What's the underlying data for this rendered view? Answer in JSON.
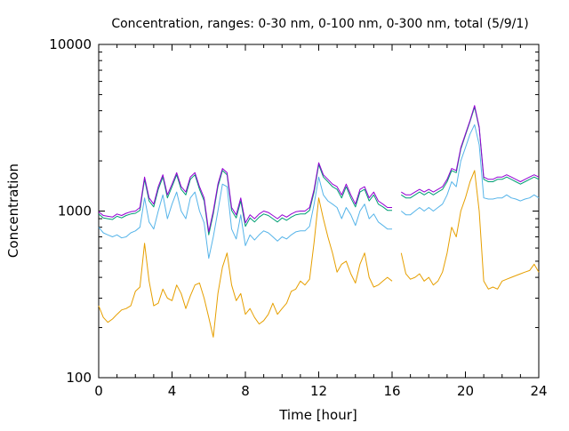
{
  "chart_data": {
    "type": "line",
    "title": "Concentration, ranges: 0-30 nm, 0-100 nm, 0-300 nm, total (5/9/1)",
    "xlabel": "Time [hour]",
    "ylabel": "Concentration",
    "x_scale": "linear",
    "y_scale": "log",
    "xlim": [
      0,
      24
    ],
    "ylim": [
      100,
      10000
    ],
    "x_ticks": [
      0,
      4,
      8,
      12,
      16,
      20,
      24
    ],
    "x_tick_labels": [
      "0",
      "4",
      "8",
      "12",
      "16",
      "20",
      "24"
    ],
    "y_ticks": [
      100,
      1000,
      10000
    ],
    "y_tick_labels": [
      "100",
      "1000",
      "10000"
    ],
    "grid": false,
    "legend": "none",
    "x": [
      0,
      0.25,
      0.5,
      0.75,
      1,
      1.25,
      1.5,
      1.75,
      2,
      2.25,
      2.5,
      2.75,
      3,
      3.25,
      3.5,
      3.75,
      4,
      4.25,
      4.5,
      4.75,
      5,
      5.25,
      5.5,
      5.75,
      6,
      6.25,
      6.5,
      6.75,
      7,
      7.25,
      7.5,
      7.75,
      8,
      8.25,
      8.5,
      8.75,
      9,
      9.25,
      9.5,
      9.75,
      10,
      10.25,
      10.5,
      10.75,
      11,
      11.25,
      11.5,
      11.75,
      12,
      12.25,
      12.5,
      12.75,
      13,
      13.25,
      13.5,
      13.75,
      14,
      14.25,
      14.5,
      14.75,
      15,
      15.25,
      15.5,
      15.75,
      16,
      16.25,
      16.5,
      16.75,
      17,
      17.25,
      17.5,
      17.75,
      18,
      18.25,
      18.5,
      18.75,
      19,
      19.25,
      19.5,
      19.75,
      20,
      20.25,
      20.5,
      20.75,
      21,
      21.25,
      21.5,
      21.75,
      22,
      22.25,
      22.5,
      22.75,
      23,
      23.25,
      23.5,
      23.75,
      24
    ],
    "series": [
      {
        "color": "#9400d3",
        "values": [
          990,
          940,
          930,
          920,
          960,
          940,
          970,
          990,
          1000,
          1050,
          1600,
          1200,
          1100,
          1400,
          1650,
          1250,
          1450,
          1700,
          1400,
          1300,
          1600,
          1700,
          1400,
          1200,
          750,
          1000,
          1450,
          1800,
          1700,
          1050,
          950,
          1200,
          850,
          950,
          900,
          960,
          1000,
          980,
          940,
          900,
          950,
          920,
          960,
          990,
          1000,
          1000,
          1050,
          1350,
          1950,
          1650,
          1550,
          1450,
          1400,
          1250,
          1450,
          1250,
          1100,
          1350,
          1400,
          1200,
          1300,
          1150,
          1100,
          1050,
          1050,
          null,
          1300,
          1250,
          1250,
          1300,
          1350,
          1300,
          1350,
          1300,
          1350,
          1400,
          1550,
          1800,
          1750,
          2400,
          2900,
          3500,
          4300,
          3200,
          1600,
          1550,
          1550,
          1600,
          1600,
          1650,
          1600,
          1550,
          1500,
          1550,
          1600,
          1650,
          1600
        ]
      },
      {
        "color": "#009e73",
        "values": [
          960,
          910,
          900,
          890,
          930,
          910,
          940,
          960,
          970,
          1010,
          1550,
          1150,
          1060,
          1350,
          1600,
          1200,
          1400,
          1650,
          1350,
          1250,
          1550,
          1650,
          1350,
          1150,
          720,
          960,
          1400,
          1750,
          1650,
          1010,
          910,
          1150,
          810,
          910,
          860,
          920,
          960,
          940,
          900,
          860,
          910,
          880,
          920,
          950,
          960,
          960,
          1010,
          1300,
          1900,
          1600,
          1500,
          1400,
          1350,
          1200,
          1400,
          1200,
          1060,
          1300,
          1350,
          1150,
          1250,
          1100,
          1060,
          1010,
          1010,
          null,
          1250,
          1200,
          1200,
          1250,
          1300,
          1250,
          1300,
          1250,
          1300,
          1350,
          1500,
          1750,
          1700,
          2350,
          2850,
          3450,
          4200,
          3150,
          1550,
          1500,
          1500,
          1550,
          1550,
          1600,
          1550,
          1500,
          1450,
          1500,
          1550,
          1600,
          1550
        ]
      },
      {
        "color": "#56b4e9",
        "values": [
          800,
          740,
          720,
          700,
          720,
          690,
          700,
          740,
          760,
          800,
          1200,
          860,
          780,
          1000,
          1250,
          900,
          1100,
          1300,
          1000,
          900,
          1200,
          1300,
          1000,
          850,
          520,
          700,
          1000,
          1450,
          1400,
          780,
          680,
          950,
          620,
          720,
          670,
          720,
          760,
          740,
          700,
          660,
          700,
          680,
          720,
          750,
          760,
          760,
          810,
          1100,
          1600,
          1250,
          1150,
          1100,
          1050,
          900,
          1050,
          950,
          820,
          1000,
          1100,
          900,
          960,
          860,
          820,
          780,
          780,
          null,
          1000,
          950,
          950,
          1000,
          1050,
          1000,
          1050,
          1000,
          1050,
          1100,
          1250,
          1500,
          1400,
          2000,
          2400,
          2900,
          3300,
          2500,
          1200,
          1180,
          1180,
          1200,
          1200,
          1250,
          1200,
          1180,
          1150,
          1180,
          1200,
          1250,
          1200
        ]
      },
      {
        "color": "#e69f00",
        "values": [
          270,
          230,
          215,
          225,
          240,
          255,
          260,
          270,
          330,
          350,
          640,
          380,
          270,
          280,
          340,
          300,
          290,
          360,
          320,
          260,
          310,
          360,
          370,
          300,
          230,
          175,
          320,
          460,
          560,
          360,
          290,
          320,
          240,
          260,
          230,
          210,
          220,
          240,
          280,
          240,
          260,
          280,
          330,
          340,
          380,
          360,
          390,
          650,
          1200,
          900,
          700,
          560,
          430,
          480,
          500,
          420,
          370,
          480,
          560,
          400,
          350,
          360,
          380,
          400,
          380,
          null,
          560,
          420,
          390,
          400,
          420,
          380,
          400,
          360,
          380,
          430,
          560,
          800,
          700,
          1000,
          1200,
          1500,
          1750,
          1000,
          380,
          340,
          350,
          340,
          380,
          390,
          400,
          410,
          420,
          430,
          440,
          480,
          430
        ]
      }
    ]
  }
}
